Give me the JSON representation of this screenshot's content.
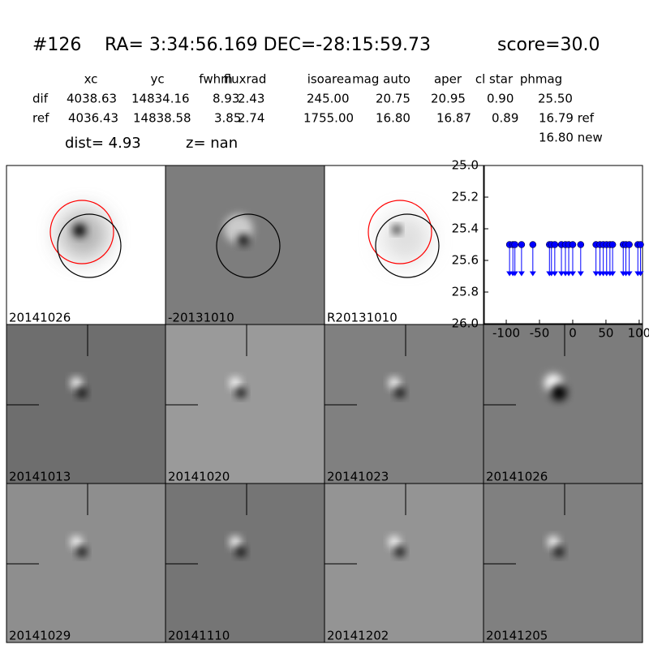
{
  "header": {
    "id": "#126",
    "coords": "RA= 3:34:56.169 DEC=-28:15:59.73",
    "score": "score=30.0"
  },
  "table": {
    "columns": [
      "xc",
      "yc",
      "fwhm",
      "fluxrad",
      "isoarea",
      "mag auto",
      "aper",
      "cl star",
      "phmag"
    ],
    "rows": [
      [
        "dif",
        "4038.63",
        "14834.16",
        "8.93",
        "2.43",
        "245.00",
        "20.75",
        "20.95",
        "0.90",
        "25.50"
      ],
      [
        "ref",
        "4036.43",
        "14838.58",
        "3.85",
        "2.74",
        "1755.00",
        "16.80",
        "16.87",
        "0.89",
        "16.79 ref"
      ]
    ],
    "note": "16.80 new"
  },
  "dist": "dist=  4.93",
  "z": "z=   nan",
  "panels": [
    "20141026",
    "-20131010",
    "R20131010",
    "20141013",
    "20141020",
    "20141023",
    "20141026",
    "20141029",
    "20141110",
    "20141202",
    "20141205"
  ],
  "chart_data": {
    "type": "scatter",
    "marker": "upper-limit",
    "color": "#0000ff",
    "invert_y": true,
    "x": [
      -95,
      -90,
      -87,
      -77,
      -60,
      -35,
      -32,
      -27,
      -17,
      -11,
      -6,
      0,
      12,
      35,
      41,
      46,
      51,
      56,
      60,
      76,
      80,
      85,
      98,
      102
    ],
    "values": [
      25.5,
      25.5,
      25.5,
      25.5,
      25.5,
      25.5,
      25.5,
      25.5,
      25.5,
      25.5,
      25.5,
      25.5,
      25.5,
      25.5,
      25.5,
      25.5,
      25.5,
      25.5,
      25.5,
      25.5,
      25.5,
      25.5,
      25.5,
      25.5
    ],
    "xlim": [
      -133,
      105
    ],
    "ylim": [
      25,
      26
    ],
    "xticks": [
      -100,
      -50,
      0,
      50,
      100
    ],
    "yticks": [
      {
        "value": 25,
        "label": "25.0"
      },
      25.2,
      25.4,
      25.6,
      25.8,
      {
        "value": 26,
        "label": "26.0"
      }
    ]
  }
}
